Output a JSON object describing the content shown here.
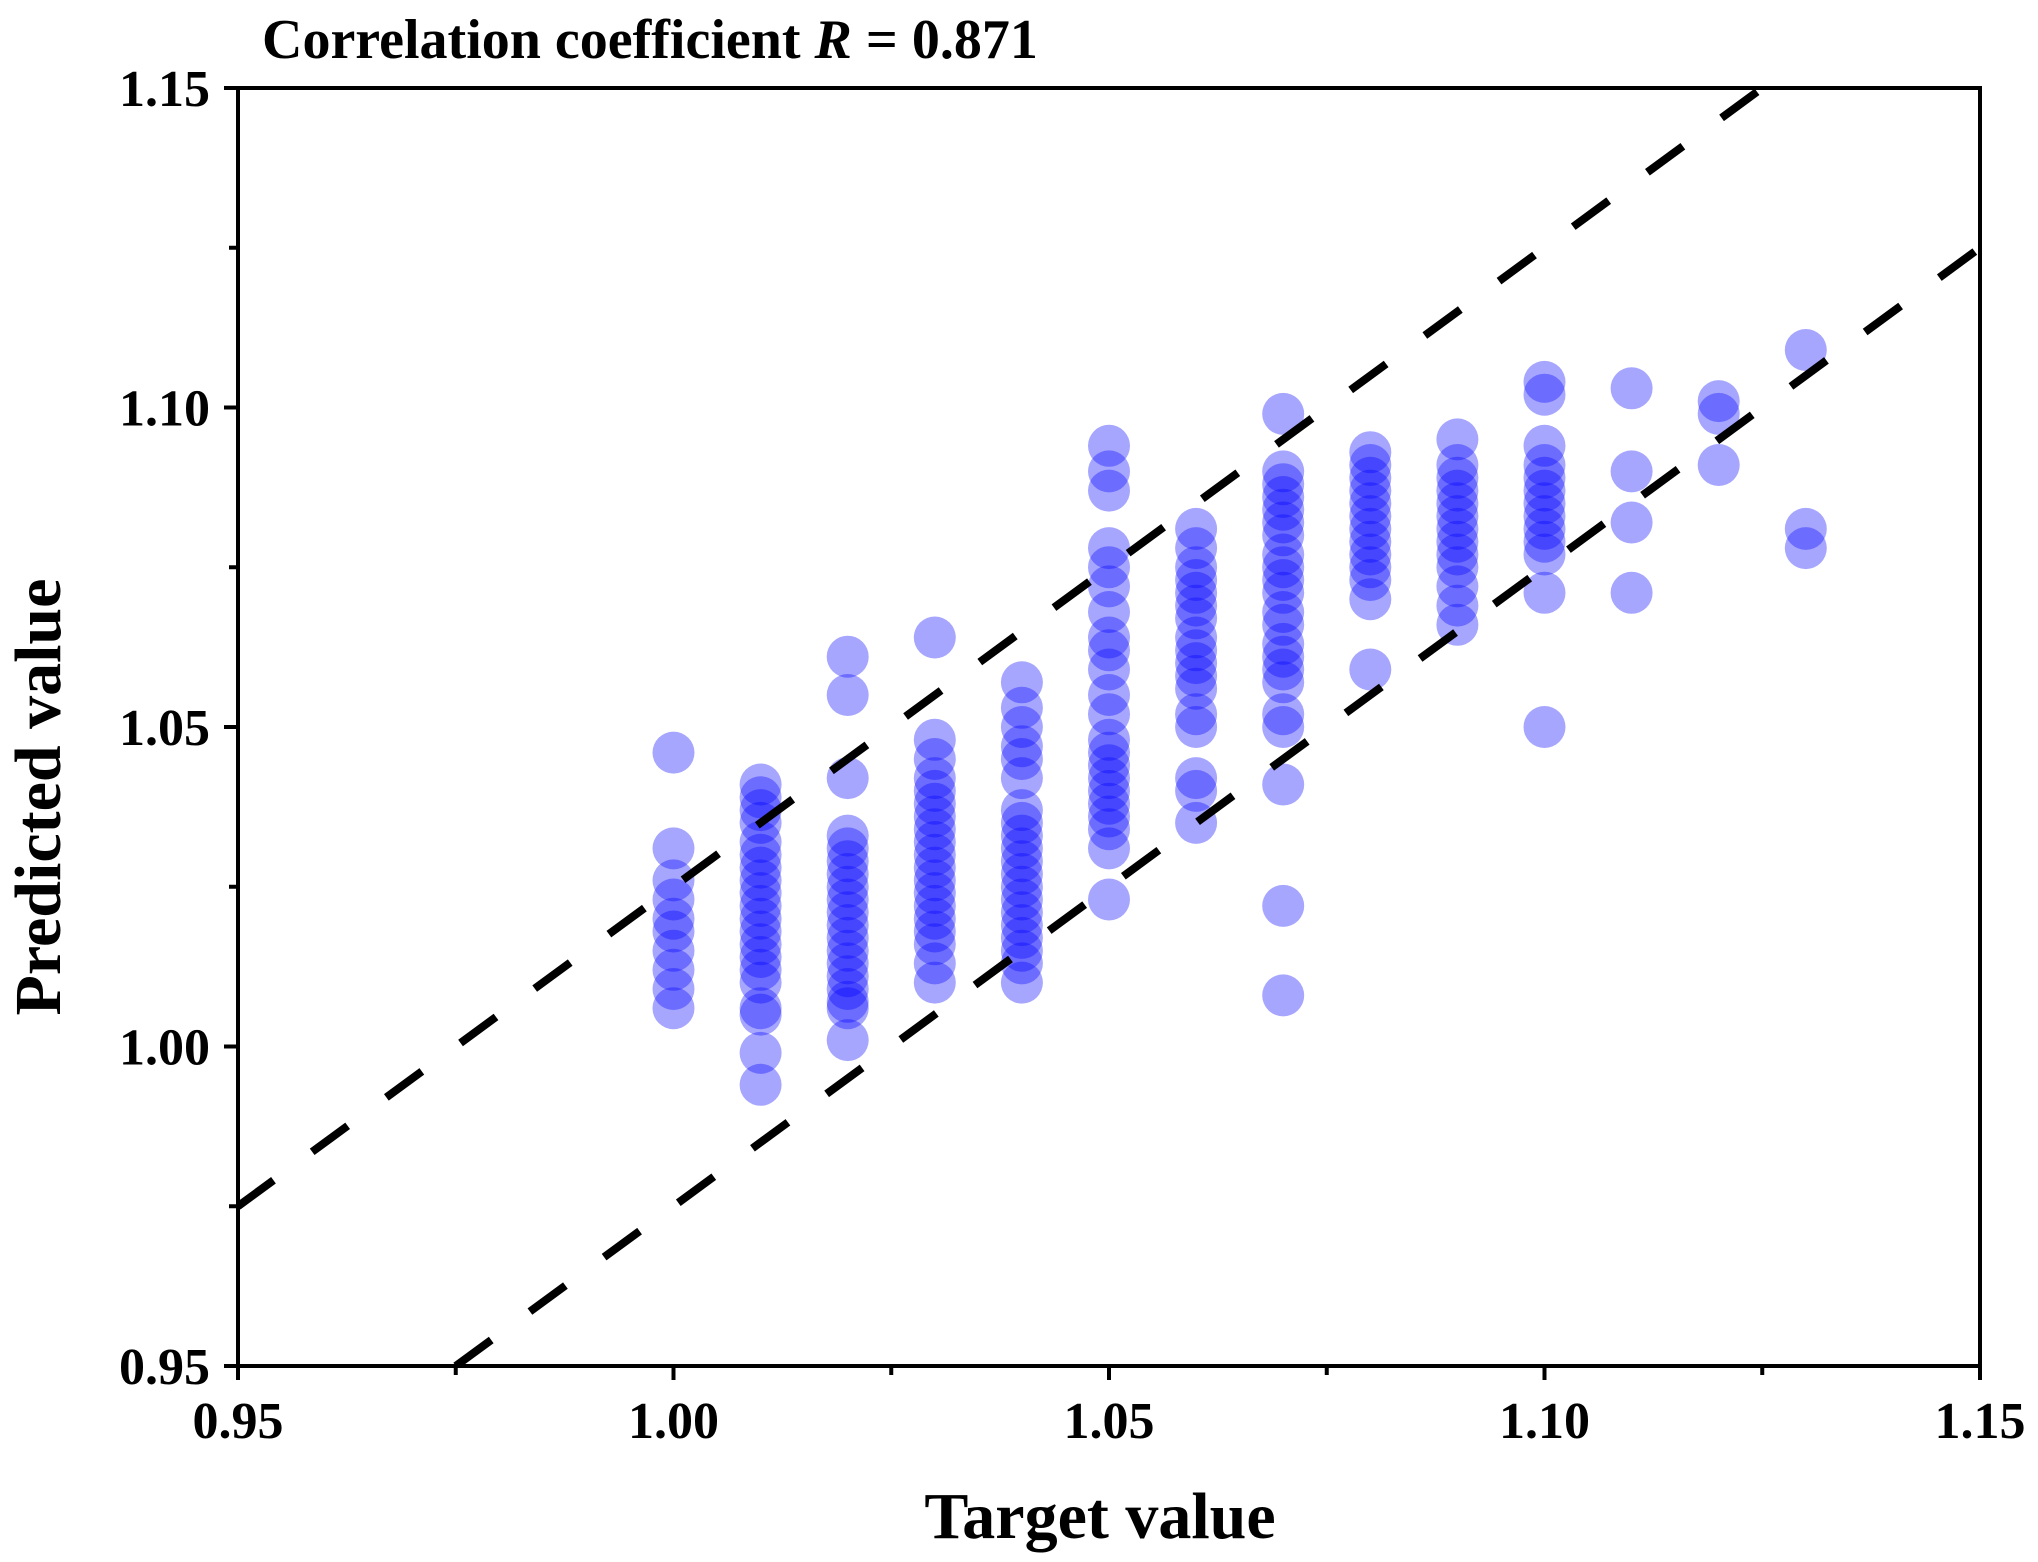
{
  "chart_data": {
    "type": "scatter",
    "title_prefix": "Correlation coefficient ",
    "title_symbol": "R",
    "title_suffix": " = 0.871",
    "xlabel": "Target value",
    "ylabel": "Predicted value",
    "xlim": [
      0.95,
      1.15
    ],
    "ylim": [
      0.95,
      1.15
    ],
    "xticks": [
      0.95,
      1.0,
      1.05,
      1.1,
      1.15
    ],
    "yticks": [
      0.95,
      1.0,
      1.05,
      1.1,
      1.15
    ],
    "xtick_labels": [
      "0.95",
      "1.00",
      "1.05",
      "1.10",
      "1.15"
    ],
    "ytick_labels": [
      "0.95",
      "1.00",
      "1.05",
      "1.10",
      "1.15"
    ],
    "grid": false,
    "point_color": "#0000ff",
    "point_opacity": 0.35,
    "line_color": "#000000",
    "reference_lines": [
      {
        "name": "upper-bound",
        "points": [
          [
            0.95,
            0.975
          ],
          [
            1.15,
            1.175
          ]
        ]
      },
      {
        "name": "lower-bound",
        "points": [
          [
            0.975,
            0.95
          ],
          [
            1.15,
            1.125
          ]
        ]
      }
    ],
    "series": [
      {
        "x": 1.0,
        "y": [
          1.046,
          1.031,
          1.026,
          1.023,
          1.02,
          1.018,
          1.015,
          1.012,
          1.009,
          1.006
        ]
      },
      {
        "x": 1.01,
        "y": [
          1.041,
          1.039,
          1.037,
          1.035,
          1.032,
          1.03,
          1.028,
          1.026,
          1.024,
          1.022,
          1.02,
          1.018,
          1.016,
          1.014,
          1.012,
          1.01,
          1.006,
          1.005,
          0.999,
          0.994
        ]
      },
      {
        "x": 1.02,
        "y": [
          1.061,
          1.055,
          1.042,
          1.033,
          1.031,
          1.029,
          1.027,
          1.025,
          1.023,
          1.021,
          1.019,
          1.017,
          1.015,
          1.013,
          1.011,
          1.009,
          1.007,
          1.006,
          1.001
        ]
      },
      {
        "x": 1.03,
        "y": [
          1.064,
          1.048,
          1.045,
          1.042,
          1.04,
          1.038,
          1.036,
          1.034,
          1.032,
          1.03,
          1.028,
          1.026,
          1.024,
          1.022,
          1.02,
          1.018,
          1.016,
          1.013,
          1.01
        ]
      },
      {
        "x": 1.04,
        "y": [
          1.057,
          1.053,
          1.05,
          1.047,
          1.045,
          1.042,
          1.037,
          1.035,
          1.033,
          1.031,
          1.029,
          1.027,
          1.025,
          1.023,
          1.021,
          1.019,
          1.017,
          1.015,
          1.013,
          1.01
        ]
      },
      {
        "x": 1.05,
        "y": [
          1.094,
          1.09,
          1.087,
          1.078,
          1.075,
          1.072,
          1.068,
          1.064,
          1.062,
          1.059,
          1.055,
          1.052,
          1.048,
          1.046,
          1.044,
          1.042,
          1.04,
          1.038,
          1.036,
          1.034,
          1.031,
          1.023
        ]
      },
      {
        "x": 1.06,
        "y": [
          1.081,
          1.078,
          1.075,
          1.073,
          1.071,
          1.069,
          1.067,
          1.064,
          1.062,
          1.06,
          1.058,
          1.056,
          1.052,
          1.05,
          1.042,
          1.04,
          1.035
        ]
      },
      {
        "x": 1.07,
        "y": [
          1.099,
          1.09,
          1.088,
          1.086,
          1.084,
          1.082,
          1.08,
          1.077,
          1.075,
          1.073,
          1.071,
          1.068,
          1.066,
          1.063,
          1.061,
          1.059,
          1.057,
          1.052,
          1.05,
          1.041,
          1.022,
          1.008
        ]
      },
      {
        "x": 1.08,
        "y": [
          1.093,
          1.091,
          1.089,
          1.087,
          1.085,
          1.083,
          1.081,
          1.079,
          1.077,
          1.075,
          1.073,
          1.07,
          1.059
        ]
      },
      {
        "x": 1.09,
        "y": [
          1.095,
          1.091,
          1.089,
          1.087,
          1.085,
          1.083,
          1.081,
          1.079,
          1.077,
          1.075,
          1.072,
          1.069,
          1.066
        ]
      },
      {
        "x": 1.1,
        "y": [
          1.104,
          1.102,
          1.094,
          1.091,
          1.089,
          1.087,
          1.085,
          1.083,
          1.081,
          1.079,
          1.077,
          1.071,
          1.05
        ]
      },
      {
        "x": 1.11,
        "y": [
          1.103,
          1.09,
          1.082,
          1.071
        ]
      },
      {
        "x": 1.12,
        "y": [
          1.101,
          1.099,
          1.091
        ]
      },
      {
        "x": 1.13,
        "y": [
          1.109,
          1.081,
          1.078
        ]
      }
    ]
  }
}
